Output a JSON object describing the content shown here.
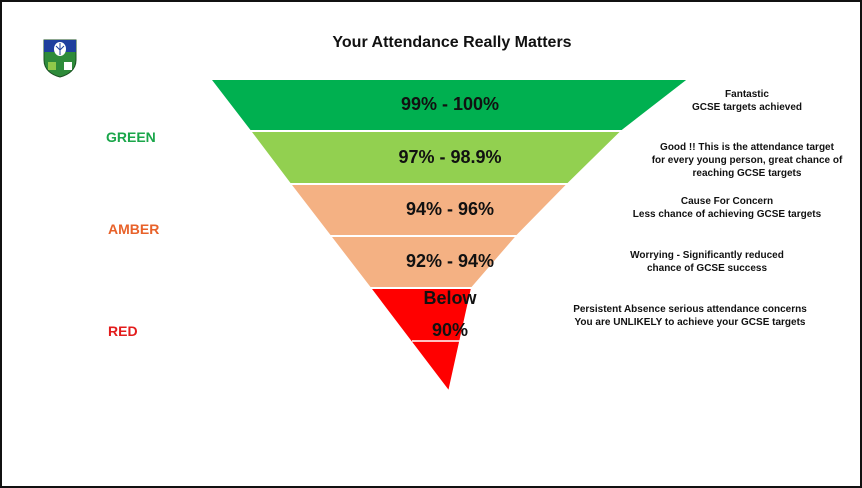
{
  "title": "Your Attendance Really Matters",
  "crest": {
    "icon": "school-crest-icon",
    "colors": {
      "shield": "#2e8b3a",
      "top": "#1f3f9e"
    }
  },
  "bands": {
    "green_label": "GREEN",
    "amber_label": "AMBER",
    "red_label": "RED",
    "green_color": "#1aa64a",
    "amber_color": "#e8622a",
    "red_color": "#e31c1c"
  },
  "tiers": [
    {
      "range": "99% - 100%",
      "color": "#00b050"
    },
    {
      "range": "97% - 98.9%",
      "color": "#92d050"
    },
    {
      "range": "94% - 96%",
      "color": "#f4b183"
    },
    {
      "range": "92% - 94%",
      "color": "#f4b183"
    },
    {
      "range_line1": "Below",
      "range_line2": "90%",
      "color": "#ff0000"
    }
  ],
  "notes": [
    [
      "Fantastic",
      "GCSE targets achieved"
    ],
    [
      "Good !!  This is the attendance target",
      "for every young person, great chance of",
      "reaching GCSE targets"
    ],
    [
      "Cause For Concern",
      "Less chance of achieving GCSE targets"
    ],
    [
      "Worrying - Significantly reduced",
      "chance of GCSE success"
    ],
    [
      "Persistent Absence serious attendance concerns",
      "You are UNLIKELY to achieve your GCSE targets"
    ]
  ]
}
